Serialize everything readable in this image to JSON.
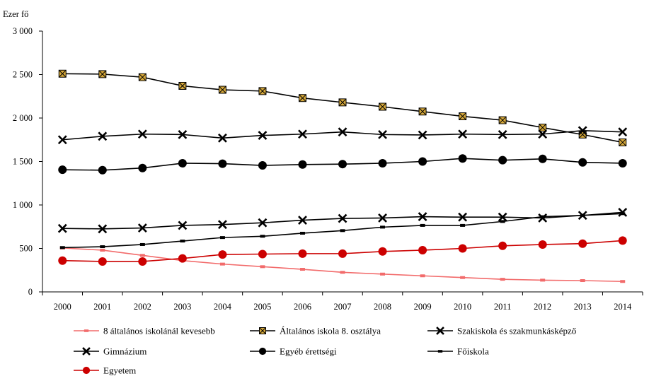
{
  "chart_data": {
    "type": "line",
    "unit_label": "Ezer fő",
    "x": [
      "2000",
      "2001",
      "2002",
      "2003",
      "2004",
      "2005",
      "2006",
      "2007",
      "2008",
      "2009",
      "2010",
      "2011",
      "2012",
      "2013",
      "2014"
    ],
    "ylim": [
      0,
      3000
    ],
    "yticks": [
      0,
      500,
      1000,
      1500,
      2000,
      2500,
      3000
    ],
    "ytick_labels": [
      "0",
      "500",
      "1 000",
      "1 500",
      "2 000",
      "2 500",
      "3 000"
    ],
    "grid": false,
    "legend_position": "bottom",
    "series": [
      {
        "name": "8 általános iskolánál kevesebb",
        "color": "#f26b6b",
        "marker": "dash",
        "values": [
          505,
          480,
          420,
          360,
          320,
          290,
          260,
          225,
          205,
          185,
          165,
          145,
          135,
          130,
          120
        ]
      },
      {
        "name": "Általános iskola 8. osztálya",
        "color": "#000000",
        "marker": "box-x",
        "values": [
          2510,
          2505,
          2470,
          2370,
          2325,
          2310,
          2230,
          2180,
          2130,
          2075,
          2020,
          1975,
          1890,
          1810,
          1720
        ]
      },
      {
        "name": "Szakiskola és szakmunkásképző",
        "color": "#000000",
        "marker": "x",
        "values": [
          1750,
          1790,
          1815,
          1810,
          1770,
          1800,
          1815,
          1840,
          1810,
          1805,
          1815,
          1810,
          1815,
          1855,
          1840
        ]
      },
      {
        "name": "Gimnázium",
        "color": "#000000",
        "marker": "x",
        "values": [
          730,
          725,
          735,
          765,
          775,
          795,
          825,
          845,
          850,
          865,
          860,
          860,
          850,
          880,
          915
        ]
      },
      {
        "name": "Egyéb érettségi",
        "color": "#000000",
        "marker": "circle",
        "values": [
          1405,
          1400,
          1425,
          1480,
          1475,
          1455,
          1465,
          1470,
          1480,
          1500,
          1535,
          1515,
          1530,
          1490,
          1480
        ]
      },
      {
        "name": "Főiskola",
        "color": "#000000",
        "marker": "dash",
        "values": [
          510,
          520,
          545,
          585,
          625,
          640,
          675,
          705,
          745,
          765,
          765,
          810,
          865,
          880,
          900
        ]
      },
      {
        "name": "Egyetem",
        "color": "#cc0000",
        "marker": "circle",
        "values": [
          360,
          350,
          350,
          385,
          430,
          435,
          440,
          440,
          465,
          480,
          500,
          530,
          545,
          555,
          590
        ]
      }
    ]
  }
}
